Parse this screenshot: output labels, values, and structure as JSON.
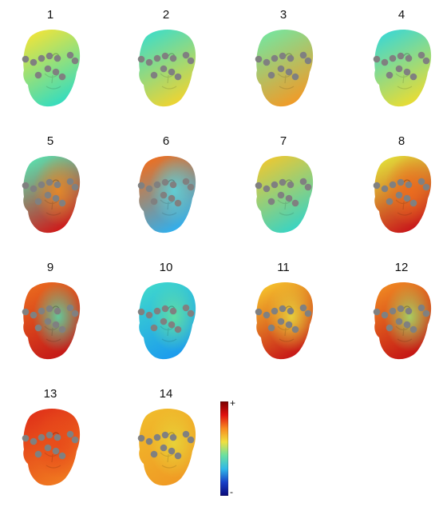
{
  "figure": {
    "panels": [
      {
        "label": "1",
        "top": "#f2e438",
        "bottom": "#33dcc0"
      },
      {
        "label": "2",
        "top": "#3dddc8",
        "bottom": "#f0d430"
      },
      {
        "label": "3",
        "top": "#74e6a0",
        "bottom": "#f29a26"
      },
      {
        "label": "4",
        "top": "#3ad8d4",
        "bottom": "#eadc32"
      },
      {
        "label": "5",
        "top": "#58e2b0",
        "bottom": "#d01818",
        "side": "#f08a20"
      },
      {
        "label": "6",
        "top": "#f26d1b",
        "bottom": "#2eb0f0",
        "side": "#5ad7df"
      },
      {
        "label": "7",
        "top": "#efc830",
        "bottom": "#38d4c4"
      },
      {
        "label": "8",
        "top": "#e3e23a",
        "bottom": "#c8141a",
        "side": "#f06a1c"
      },
      {
        "label": "9",
        "top": "#ea6a1e",
        "bottom": "#c41818",
        "side": "#4fe0b0"
      },
      {
        "label": "10",
        "top": "#3fd8cc",
        "bottom": "#1b9aee",
        "side": "#6ae49a"
      },
      {
        "label": "11",
        "top": "#f6c52c",
        "bottom": "#c61417",
        "side": "#e8e040"
      },
      {
        "label": "12",
        "top": "#f08a22",
        "bottom": "#c41414",
        "side": "#9ee46e"
      },
      {
        "label": "13",
        "top": "#e03018",
        "bottom": "#f07a20",
        "side": "#e84a1a"
      },
      {
        "label": "14",
        "top": "#f0bc2c",
        "bottom": "#f09a24",
        "side": "#e6d83a"
      }
    ],
    "colorbar": {
      "plus_label": "+",
      "minus_label": "-",
      "stops": [
        "#7a0000",
        "#e01010",
        "#f88a20",
        "#f0e040",
        "#6ae0a0",
        "#30b8e8",
        "#1840c8",
        "#0a0a7a"
      ]
    }
  }
}
